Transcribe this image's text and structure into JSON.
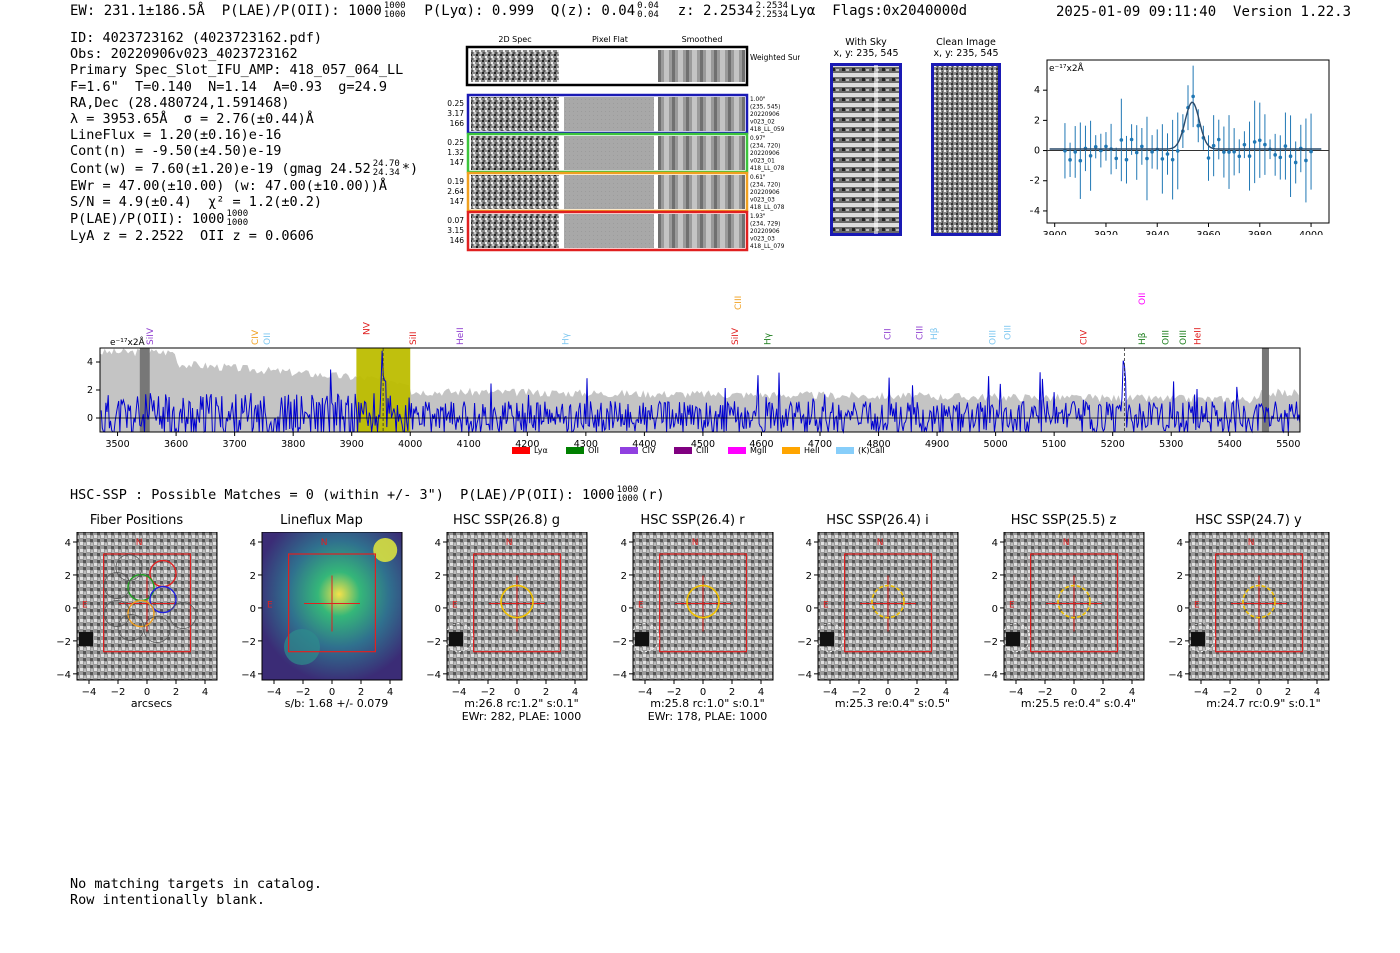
{
  "header": {
    "ew_label": "EW: 231.1±186.5Å",
    "plae_label": "P(LAE)/P(OII): 1000",
    "plae_frac": [
      "1000",
      "1000"
    ],
    "plya": "P(Lyα): 0.999",
    "qz_label": "Q(z): 0.04",
    "qz_frac": [
      "0.04",
      "0.04"
    ],
    "z_label": "z: 2.2534",
    "z_frac": [
      "2.2534",
      "2.2534"
    ],
    "z_line": "Lyα",
    "flags": "Flags:0x2040000d",
    "datetime": "2025-01-09 09:11:40",
    "version": "Version 1.22.3"
  },
  "info": {
    "id": "ID: 4023723162 (4023723162.pdf)",
    "obs": "Obs: 20220906v023_4023723162",
    "primary": "Primary Spec_Slot_IFU_AMP: 418_057_064_LL",
    "fibers": "F=1.6\"  T=0.140  N=1.14  A=0.93  g=24.9",
    "radec": "RA,Dec (28.480724,1.591468)",
    "lambda": "λ = 3953.65Å  σ = 2.76(±0.44)Å",
    "lineflux": "LineFlux = 1.20(±0.16)e-16",
    "contn": "Cont(n) = -9.50(±4.50)e-19",
    "contw": "Cont(w) = 7.60(±1.20)e-19 (gmag 24.52",
    "contw_frac": [
      "24.70",
      "24.34"
    ],
    "contw_tail": "*)",
    "ewr": "EWr = 47.00(±10.00) (w: 47.00(±10.00))Å",
    "sn": "S/N = 4.9(±0.4)  χ² = 1.2(±0.2)",
    "plae": "P(LAE)/P(OII): 1000",
    "plae_frac": [
      "1000",
      "1000"
    ],
    "lyaz": "LyA z = 2.2522  OII z = 0.0606"
  },
  "cutouts": {
    "col_headers": [
      "2D Spec",
      "Pixel Flat",
      "Smoothed"
    ],
    "weighted_sum": "Weighted Sum",
    "rows": [
      {
        "left": [
          "0.25",
          "3.17",
          "166"
        ],
        "right": [
          "1.00\"",
          "(235, 545)",
          "20220906",
          "v023_02",
          "418_LL_059"
        ],
        "color": "#1a1ab4"
      },
      {
        "left": [
          "0.25",
          "1.32",
          "147"
        ],
        "right": [
          "0.97\"",
          "(234, 720)",
          "20220906",
          "v023_01",
          "418_LL_078"
        ],
        "color": "#3cc43c"
      },
      {
        "left": [
          "0.19",
          "2.64",
          "147"
        ],
        "right": [
          "0.61\"",
          "(234, 720)",
          "20220906",
          "v023_03",
          "418_LL_078"
        ],
        "color": "#f0a020"
      },
      {
        "left": [
          "0.07",
          "3.15",
          "146"
        ],
        "right": [
          "1.93\"",
          "(234, 729)",
          "20220906",
          "v023_03",
          "418_LL_079"
        ],
        "color": "#e02020"
      }
    ]
  },
  "sky": {
    "with_sky_title": "With Sky",
    "with_sky_xy": "x, y: 235, 545",
    "clean_title": "Clean Image",
    "clean_xy": "x, y: 235, 545"
  },
  "zoom_plot": {
    "unit_label": "e⁻¹⁷x2Å",
    "xticks": [
      "3900",
      "3920",
      "3940",
      "3960",
      "3980",
      "4000"
    ],
    "yticks": [
      "4",
      "2",
      "0",
      "−2",
      "−4"
    ]
  },
  "spectrum": {
    "unit_label": "e⁻¹⁷x2Å",
    "xticks": [
      "3500",
      "3600",
      "3700",
      "3800",
      "3900",
      "4000",
      "4100",
      "4200",
      "4300",
      "4400",
      "4500",
      "4600",
      "4700",
      "4800",
      "4900",
      "5000",
      "5100",
      "5200",
      "5300",
      "5400",
      "5500"
    ],
    "yticks": [
      "4",
      "2",
      "0"
    ],
    "line_labels": [
      {
        "text": "SiIV",
        "color": "#9040d0"
      },
      {
        "text": "CIV",
        "color": "#f0a020"
      },
      {
        "text": "OII",
        "color": "#80c8f0"
      },
      {
        "text": "NV",
        "color": "#e02020"
      },
      {
        "text": "SiII",
        "color": "#e02020"
      },
      {
        "text": "HeII",
        "color": "#9040d0"
      },
      {
        "text": "Hγ",
        "color": "#80c8f0"
      },
      {
        "text": "SiIV",
        "color": "#e02020"
      },
      {
        "text": "CIII",
        "color": "#f0a020"
      },
      {
        "text": "Hγ",
        "color": "#208020"
      },
      {
        "text": "CII",
        "color": "#9040d0"
      },
      {
        "text": "CIII",
        "color": "#9040d0"
      },
      {
        "text": "Hβ",
        "color": "#80c8f0"
      },
      {
        "text": "OIII",
        "color": "#80c8f0"
      },
      {
        "text": "OIII",
        "color": "#80c8f0"
      },
      {
        "text": "CIV",
        "color": "#e02020"
      },
      {
        "text": "Hβ",
        "color": "#208020"
      },
      {
        "text": "OII",
        "color": "#ff00ff"
      },
      {
        "text": "OIII",
        "color": "#208020"
      },
      {
        "text": "OIII",
        "color": "#208020"
      },
      {
        "text": "HeII",
        "color": "#e02020"
      }
    ],
    "legend": [
      {
        "label": "Lyα",
        "color": "#ff0000"
      },
      {
        "label": "OII",
        "color": "#008000"
      },
      {
        "label": "CIV",
        "color": "#9040e0"
      },
      {
        "label": "CIII",
        "color": "#800080"
      },
      {
        "label": "MgII",
        "color": "#ff00ff"
      },
      {
        "label": "HeII",
        "color": "#ffa500"
      },
      {
        "label": "(K)CaII",
        "color": "#87cefa"
      }
    ]
  },
  "hsc_header": "HSC-SSP : Possible Matches = 0 (within +/- 3\")  P(LAE)/P(OII): 1000",
  "hsc_header_frac": [
    "1000",
    "1000"
  ],
  "hsc_header_tail": "(r)",
  "panels": [
    {
      "title": "Fiber Positions",
      "cap1": "arcsecs",
      "cap2": ""
    },
    {
      "title": "Lineflux Map",
      "cap1": "s/b: 1.68 +/- 0.079",
      "cap2": ""
    },
    {
      "title": "HSC SSP(26.8) g",
      "cap1": "m:26.8 rc:1.2\"  s:0.1\"",
      "cap2": "EWr: 282, PLAE: 1000"
    },
    {
      "title": "HSC SSP(26.4) r",
      "cap1": "m:25.8 rc:1.0\"  s:0.1\"",
      "cap2": "EWr: 178, PLAE: 1000"
    },
    {
      "title": "HSC SSP(26.4) i",
      "cap1": "m:25.3  re:0.4\"  s:0.5\"",
      "cap2": ""
    },
    {
      "title": "HSC SSP(25.5) z",
      "cap1": "m:25.5  re:0.4\"  s:0.4\"",
      "cap2": ""
    },
    {
      "title": "HSC SSP(24.7) y",
      "cap1": "m:24.7 rc:0.9\"  s:0.1\"",
      "cap2": ""
    }
  ],
  "panel_axis": {
    "xticks": [
      "−4",
      "−2",
      "0",
      "2",
      "4"
    ],
    "yticks": [
      "4",
      "2",
      "0",
      "−2",
      "−4"
    ],
    "north": "N",
    "east": "E"
  },
  "footer": {
    "line1": "No matching targets in catalog.",
    "line2": "Row intentionally blank."
  }
}
